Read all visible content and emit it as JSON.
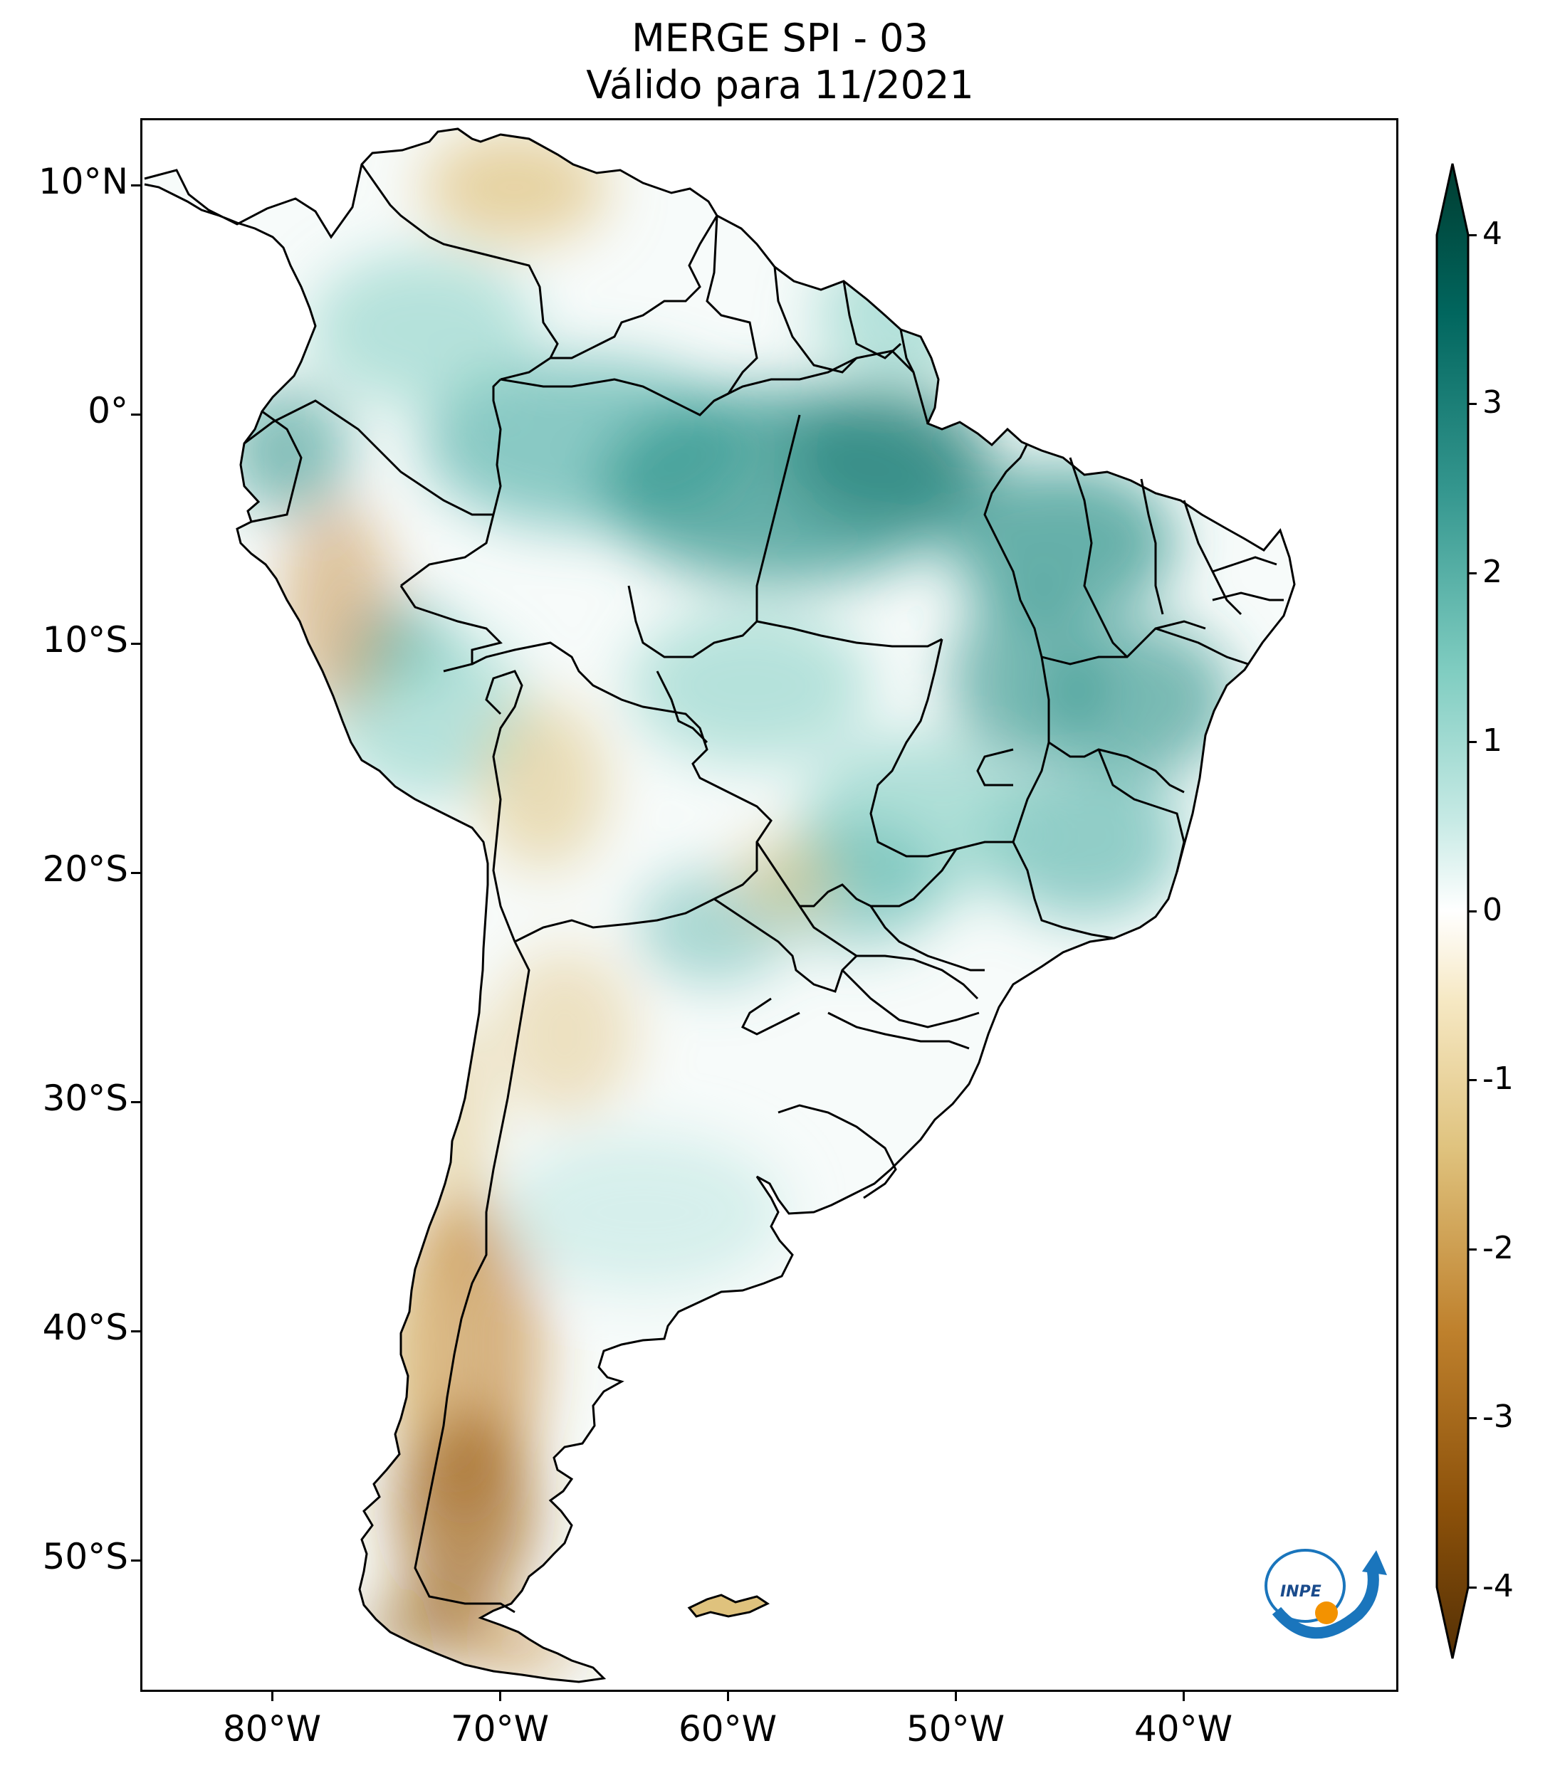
{
  "title_line1": "MERGE   SPI - 03",
  "title_line2": "Válido para 11/2021",
  "lat_ticks": [
    "10°N",
    "0°",
    "10°S",
    "20°S",
    "30°S",
    "40°S",
    "50°S"
  ],
  "lon_ticks": [
    "80°W",
    "70°W",
    "60°W",
    "50°W",
    "40°W"
  ],
  "colorbar": {
    "ticks": [
      "4",
      "3",
      "2",
      "1",
      "0",
      "-1",
      "-2",
      "-3",
      "-4"
    ],
    "colormap": "BrBG",
    "colors": [
      "#543005",
      "#8c510a",
      "#bf812d",
      "#dfc27d",
      "#f6e8c3",
      "#ffffff",
      "#c7eae5",
      "#80cdc1",
      "#35978f",
      "#01665e",
      "#003c30"
    ]
  },
  "logo": {
    "text": "INPE"
  },
  "colors": {
    "land_outline": "#000000",
    "ocean": "#ffffff"
  }
}
